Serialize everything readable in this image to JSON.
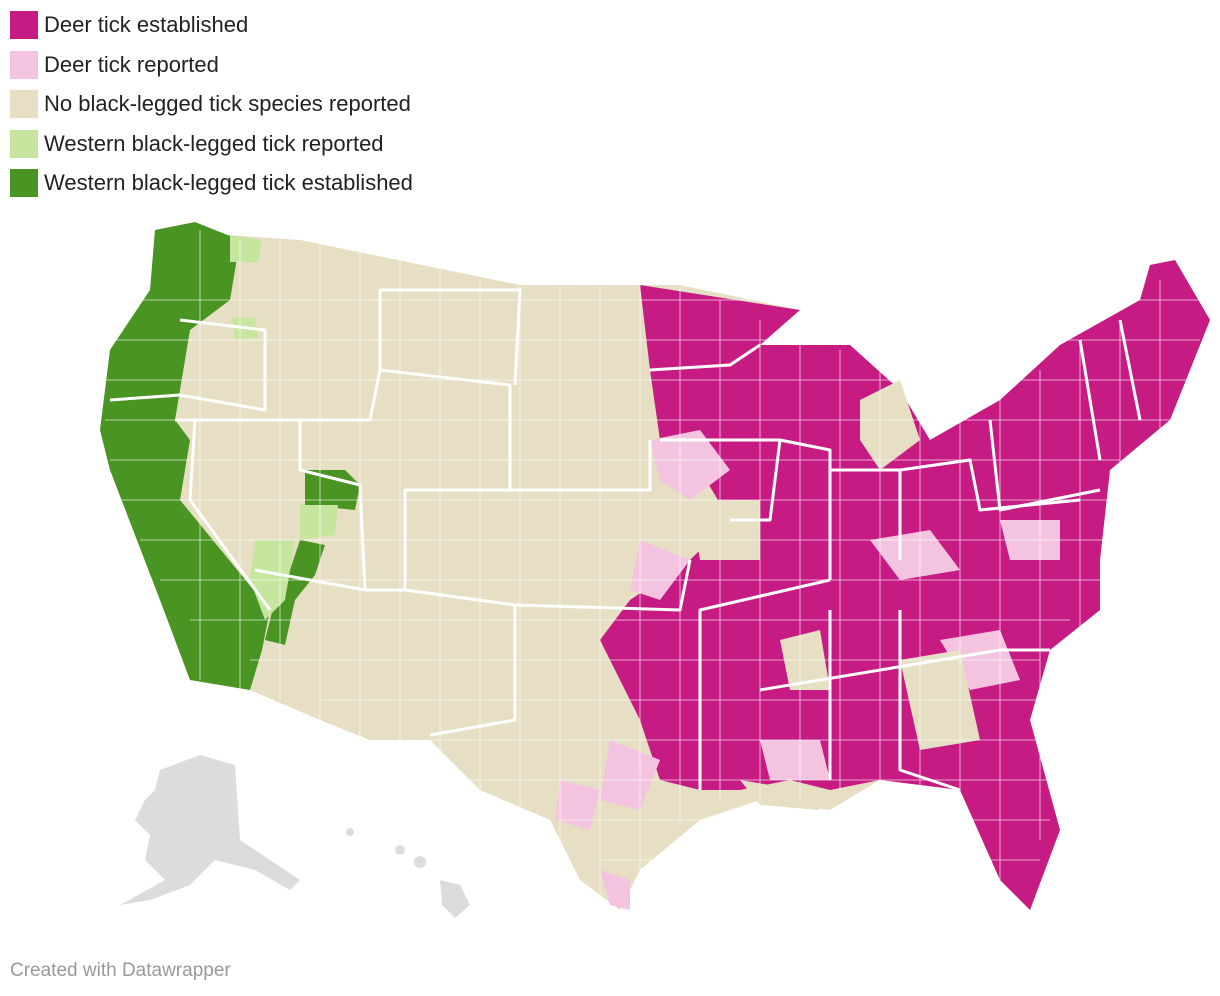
{
  "legend": {
    "items": [
      {
        "label": "Deer tick established",
        "color": "#c71b84"
      },
      {
        "label": "Deer tick reported",
        "color": "#f4c3e0"
      },
      {
        "label": "No black-legged tick species reported",
        "color": "#e6dfc4"
      },
      {
        "label": "Western black-legged tick reported",
        "color": "#c6e6a0"
      },
      {
        "label": "Western black-legged tick established",
        "color": "#4a9423"
      }
    ]
  },
  "credit": "Created with Datawrapper"
}
